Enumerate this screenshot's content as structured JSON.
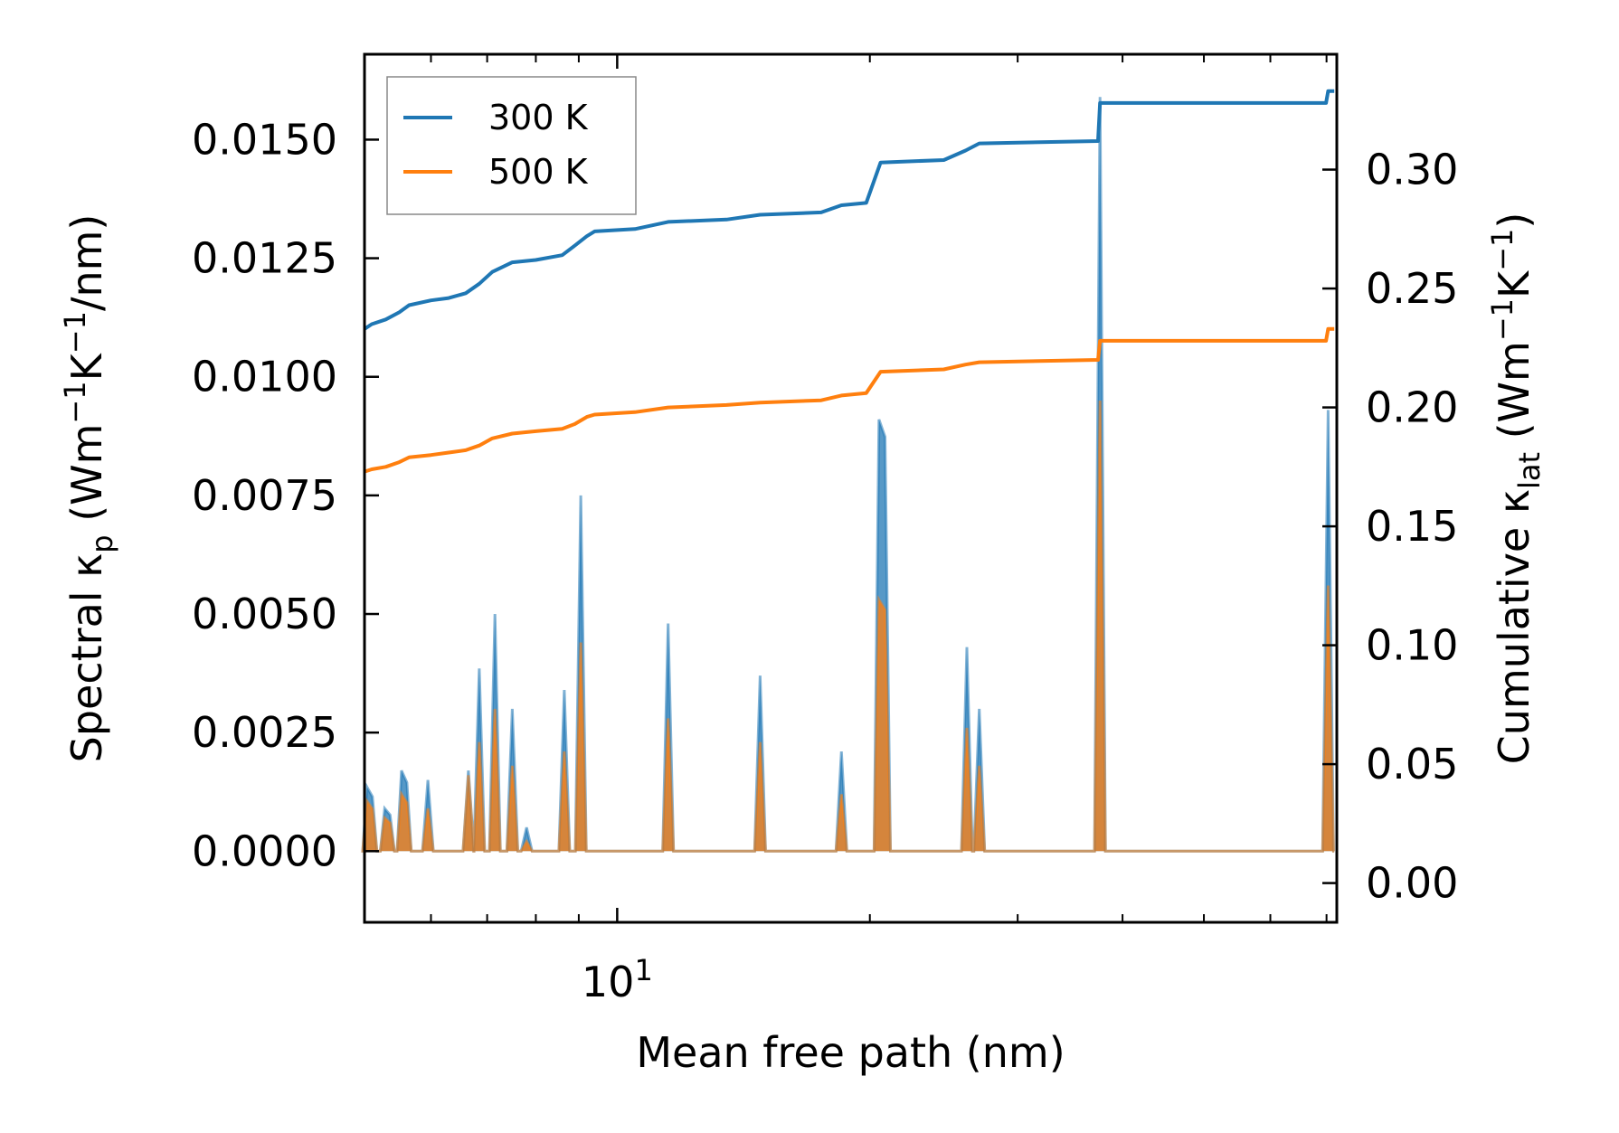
{
  "chart_data": {
    "type": "line",
    "title": "",
    "xlabel": "Mean free path (nm)",
    "xscale": "log",
    "xlim": [
      5.0,
      72.0
    ],
    "x_tick_labels": [
      {
        "value": 10,
        "base": "10",
        "exp": "1"
      }
    ],
    "ylabel_left": {
      "main": "Spectral κ",
      "sub": "p",
      "unit_pre": " (Wm",
      "sup1": "−1",
      "mid": "K",
      "sup2": "−1",
      "unit_post": "/nm)"
    },
    "ylabel_right": {
      "main": "Cumulative κ",
      "sub": "lat",
      "unit_pre": " (Wm",
      "sup1": "−1",
      "mid": "K",
      "sup2": "−1",
      "unit_post": ")"
    },
    "ylim_left": [
      -0.0015,
      0.0168
    ],
    "ylim_right": [
      -0.0165,
      0.3485
    ],
    "yticks_left": [
      "0.0000",
      "0.0025",
      "0.0050",
      "0.0075",
      "0.0100",
      "0.0125",
      "0.0150"
    ],
    "yticks_right": [
      "0.00",
      "0.05",
      "0.10",
      "0.15",
      "0.20",
      "0.25",
      "0.30"
    ],
    "colors": {
      "300K": "#1f77b4",
      "500K": "#ff7f0e",
      "300K_fill": "#1f77b4",
      "500K_fill": "#ff7f0e"
    },
    "legend": {
      "position": "top-left",
      "entries": [
        "300 K",
        "500 K"
      ]
    },
    "spectral": [
      {
        "name": "300 K",
        "peaks": [
          [
            5.05,
            0.00135,
            "flat"
          ],
          [
            5.3,
            0.0009,
            "flat"
          ],
          [
            5.55,
            0.0017,
            "flat"
          ],
          [
            5.95,
            0.0015,
            "spike"
          ],
          [
            6.65,
            0.0017,
            "spike"
          ],
          [
            6.85,
            0.00385,
            "spike"
          ],
          [
            7.15,
            0.005,
            "spike"
          ],
          [
            7.5,
            0.003,
            "spike"
          ],
          [
            7.8,
            0.0005,
            "spike"
          ],
          [
            8.65,
            0.0034,
            "spike"
          ],
          [
            9.05,
            0.0075,
            "spike"
          ],
          [
            11.5,
            0.0048,
            "spike"
          ],
          [
            14.8,
            0.0037,
            "spike"
          ],
          [
            18.5,
            0.0021,
            "spike"
          ],
          [
            20.6,
            0.0091,
            "double"
          ],
          [
            26.1,
            0.0043,
            "spike"
          ],
          [
            27.0,
            0.003,
            "spike"
          ],
          [
            37.6,
            0.0159,
            "spike"
          ],
          [
            70.3,
            0.0093,
            "spike"
          ]
        ]
      },
      {
        "name": "500 K",
        "peaks": [
          [
            5.05,
            0.00105,
            "flat"
          ],
          [
            5.3,
            0.0007,
            "flat"
          ],
          [
            5.55,
            0.0012,
            "flat"
          ],
          [
            5.95,
            0.0009,
            "spike"
          ],
          [
            6.65,
            0.0016,
            "spike"
          ],
          [
            6.85,
            0.0023,
            "spike"
          ],
          [
            7.15,
            0.003,
            "spike"
          ],
          [
            7.5,
            0.0018,
            "spike"
          ],
          [
            7.8,
            0.0002,
            "spike"
          ],
          [
            8.65,
            0.0021,
            "spike"
          ],
          [
            9.05,
            0.0044,
            "spike"
          ],
          [
            11.5,
            0.0028,
            "spike"
          ],
          [
            14.8,
            0.0023,
            "spike"
          ],
          [
            18.5,
            0.0012,
            "spike"
          ],
          [
            20.6,
            0.0053,
            "double"
          ],
          [
            26.1,
            0.0026,
            "spike"
          ],
          [
            27.0,
            0.0018,
            "spike"
          ],
          [
            37.6,
            0.0095,
            "spike"
          ],
          [
            70.3,
            0.0056,
            "spike"
          ]
        ]
      }
    ],
    "cumulative": [
      {
        "name": "300 K",
        "points": [
          [
            5.0,
            0.233
          ],
          [
            5.1,
            0.235
          ],
          [
            5.3,
            0.237
          ],
          [
            5.5,
            0.24
          ],
          [
            5.65,
            0.243
          ],
          [
            6.0,
            0.245
          ],
          [
            6.3,
            0.246
          ],
          [
            6.6,
            0.248
          ],
          [
            6.85,
            0.252
          ],
          [
            7.1,
            0.257
          ],
          [
            7.5,
            0.261
          ],
          [
            8.0,
            0.262
          ],
          [
            8.6,
            0.264
          ],
          [
            8.9,
            0.268
          ],
          [
            9.2,
            0.272
          ],
          [
            9.4,
            0.274
          ],
          [
            10.5,
            0.275
          ],
          [
            11.5,
            0.278
          ],
          [
            13.5,
            0.279
          ],
          [
            14.8,
            0.281
          ],
          [
            17.5,
            0.282
          ],
          [
            18.5,
            0.285
          ],
          [
            19.8,
            0.286
          ],
          [
            20.6,
            0.303
          ],
          [
            24.5,
            0.304
          ],
          [
            26.0,
            0.308
          ],
          [
            27.0,
            0.311
          ],
          [
            37.4,
            0.312
          ],
          [
            37.6,
            0.328
          ],
          [
            69.9,
            0.328
          ],
          [
            70.3,
            0.333
          ],
          [
            71.5,
            0.333
          ]
        ]
      },
      {
        "name": "500 K",
        "points": [
          [
            5.0,
            0.173
          ],
          [
            5.1,
            0.174
          ],
          [
            5.3,
            0.175
          ],
          [
            5.5,
            0.177
          ],
          [
            5.65,
            0.179
          ],
          [
            6.0,
            0.18
          ],
          [
            6.3,
            0.181
          ],
          [
            6.6,
            0.182
          ],
          [
            6.85,
            0.184
          ],
          [
            7.1,
            0.187
          ],
          [
            7.5,
            0.189
          ],
          [
            8.0,
            0.19
          ],
          [
            8.6,
            0.191
          ],
          [
            8.9,
            0.193
          ],
          [
            9.2,
            0.196
          ],
          [
            9.4,
            0.197
          ],
          [
            10.5,
            0.198
          ],
          [
            11.5,
            0.2
          ],
          [
            13.5,
            0.201
          ],
          [
            14.8,
            0.202
          ],
          [
            17.5,
            0.203
          ],
          [
            18.5,
            0.205
          ],
          [
            19.8,
            0.206
          ],
          [
            20.6,
            0.215
          ],
          [
            24.5,
            0.216
          ],
          [
            26.0,
            0.218
          ],
          [
            27.0,
            0.219
          ],
          [
            37.4,
            0.22
          ],
          [
            37.6,
            0.228
          ],
          [
            69.9,
            0.228
          ],
          [
            70.3,
            0.233
          ],
          [
            71.5,
            0.233
          ]
        ]
      }
    ]
  }
}
